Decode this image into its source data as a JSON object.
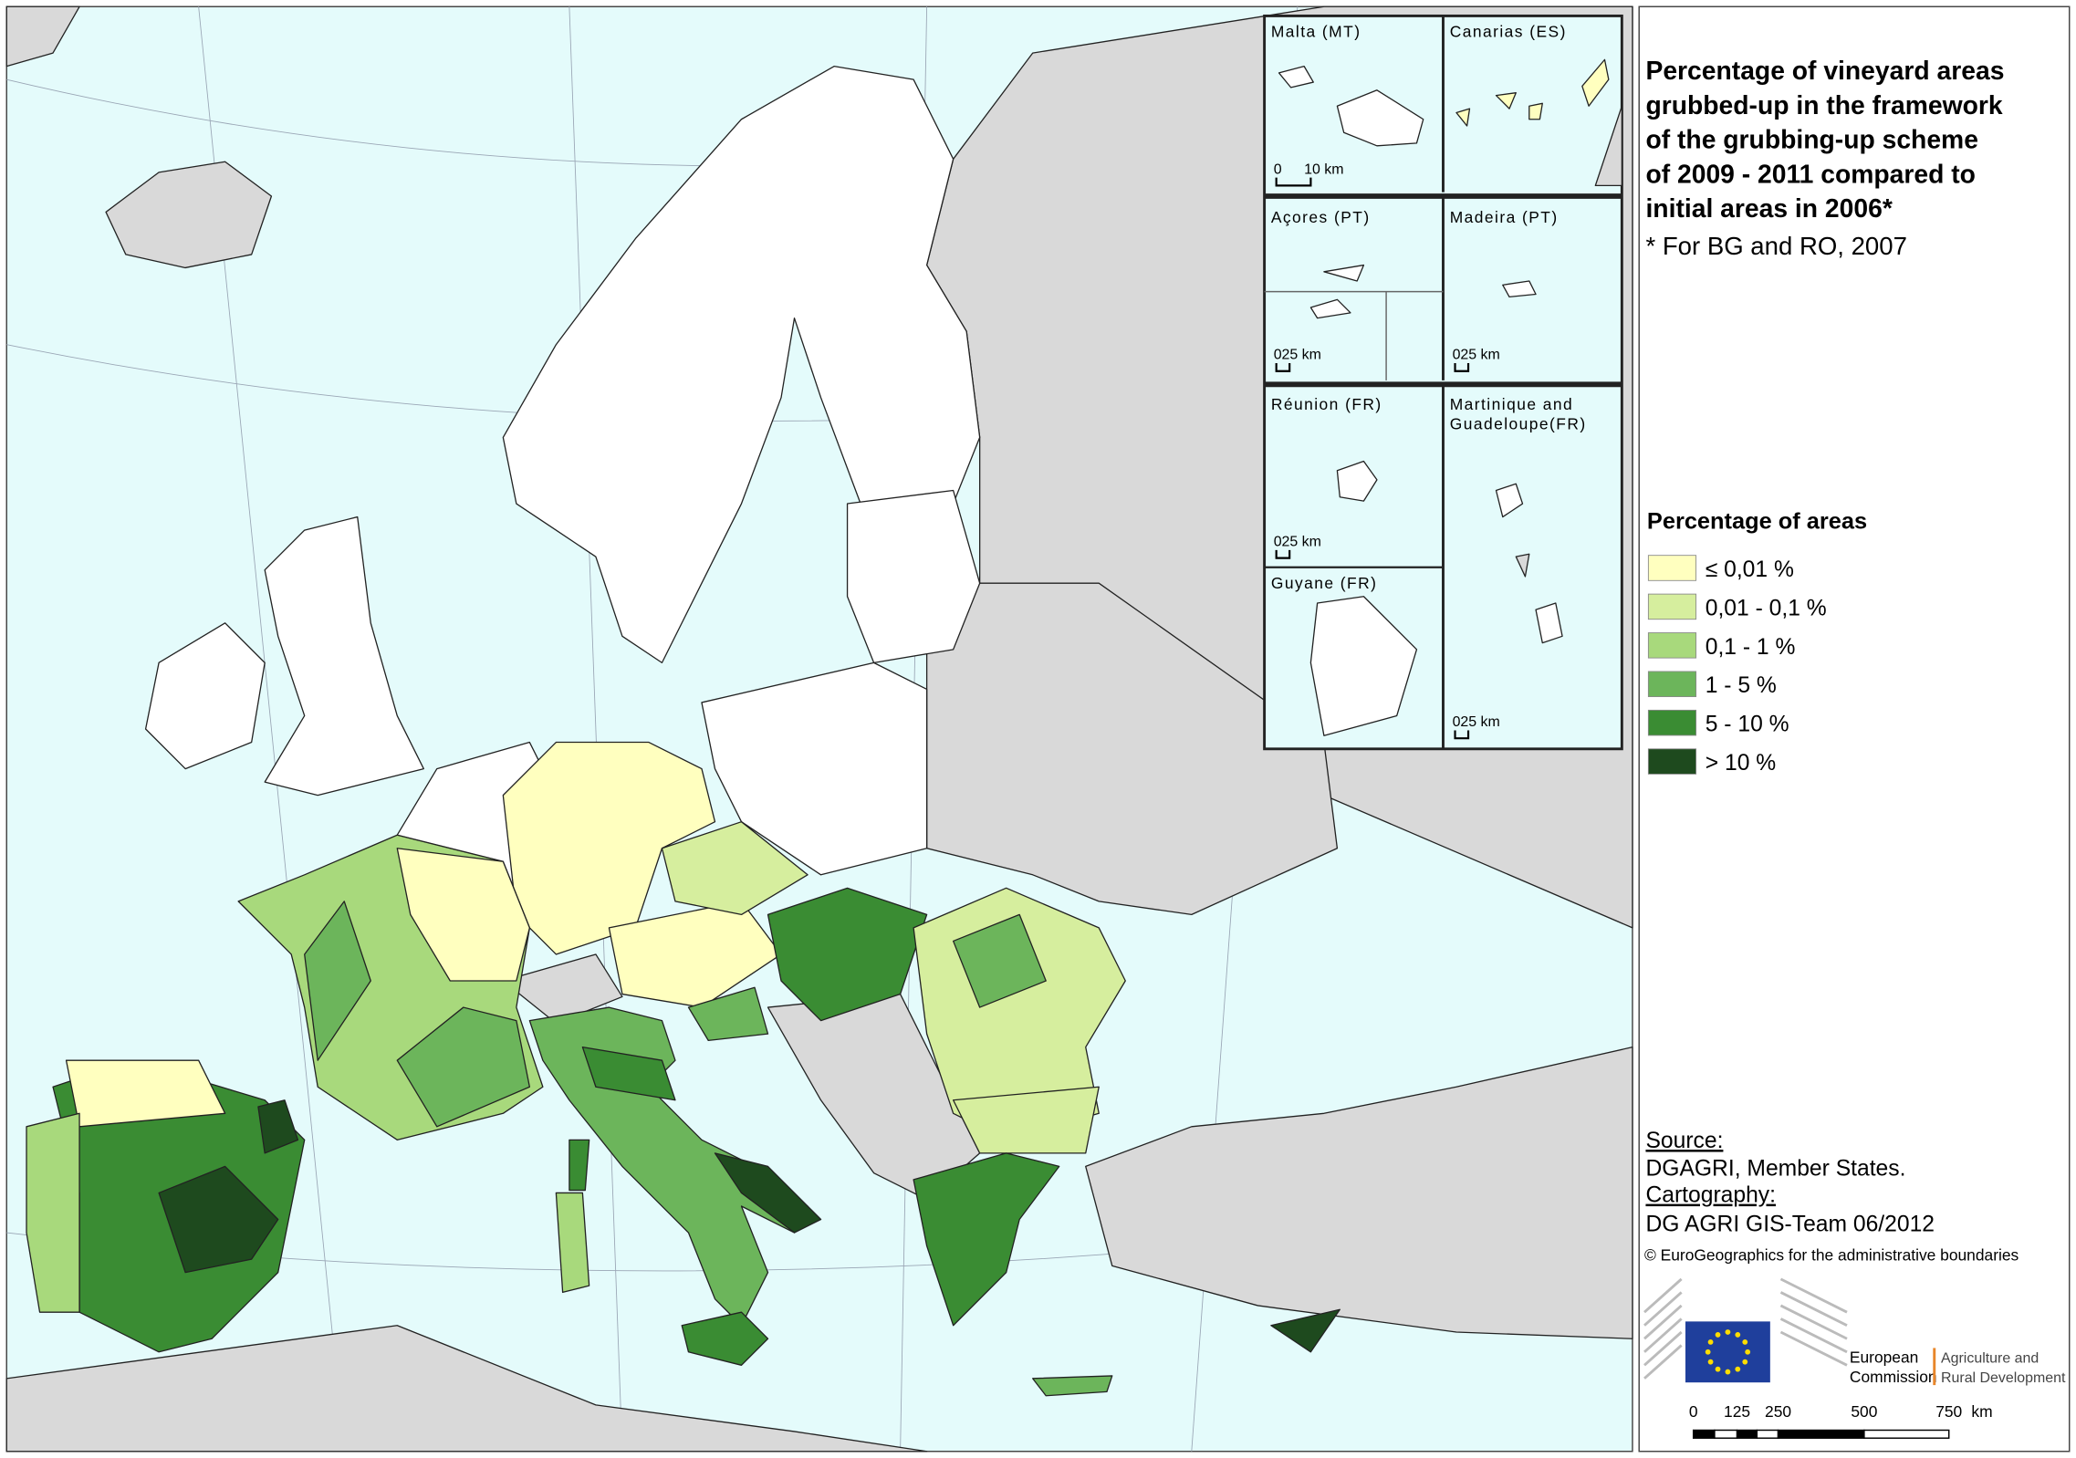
{
  "title": [
    "Percentage of vineyard areas",
    "grubbed-up in the framework",
    "of the grubbing-up scheme",
    "of 2009 - 2011 compared to",
    "initial areas in 2006*"
  ],
  "footnote": "* For BG and RO, 2007",
  "insets": [
    {
      "label": [
        "Malta (MT)"
      ],
      "scale": [
        "0",
        "10 km"
      ]
    },
    {
      "label": [
        "Canarias (ES)"
      ]
    },
    {
      "label": [
        "Açores (PT)"
      ],
      "scale": [
        "0",
        "25 km"
      ]
    },
    {
      "label": [
        "Madeira (PT)"
      ],
      "scale": [
        "0",
        "25 km"
      ]
    },
    {
      "label": [
        "Réunion (FR)"
      ],
      "scale": [
        "0",
        "25 km"
      ]
    },
    {
      "label": [
        "Guyane (FR)"
      ]
    },
    {
      "label": [
        "Martinique and",
        "Guadeloupe(FR)"
      ],
      "scale": [
        "0",
        "25 km"
      ]
    }
  ],
  "legend": {
    "title": "Percentage of areas",
    "items": [
      {
        "label": "≤ 0,01 %",
        "color": "#ffffbf"
      },
      {
        "label": "0,01 - 0,1 %",
        "color": "#d6ee9e"
      },
      {
        "label": "0,1 - 1 %",
        "color": "#a8d97c"
      },
      {
        "label": "1 - 5 %",
        "color": "#6cb55b"
      },
      {
        "label": "5 - 10 %",
        "color": "#3a8c33"
      },
      {
        "label": "> 10 %",
        "color": "#1e4a1e"
      }
    ]
  },
  "source": {
    "heading": "Source:",
    "text": "DGAGRI, Member States."
  },
  "cartography": {
    "heading": "Cartography:",
    "text": "DG AGRI GIS-Team 06/2012"
  },
  "copyright": "© EuroGeographics for the administrative boundaries",
  "logo": {
    "name": [
      "European",
      "Commission"
    ],
    "dg": [
      "Agriculture and",
      "Rural Development"
    ]
  },
  "scale_bar": {
    "labels": [
      "0",
      "125",
      "250",
      "500",
      "750"
    ],
    "unit": "km"
  }
}
